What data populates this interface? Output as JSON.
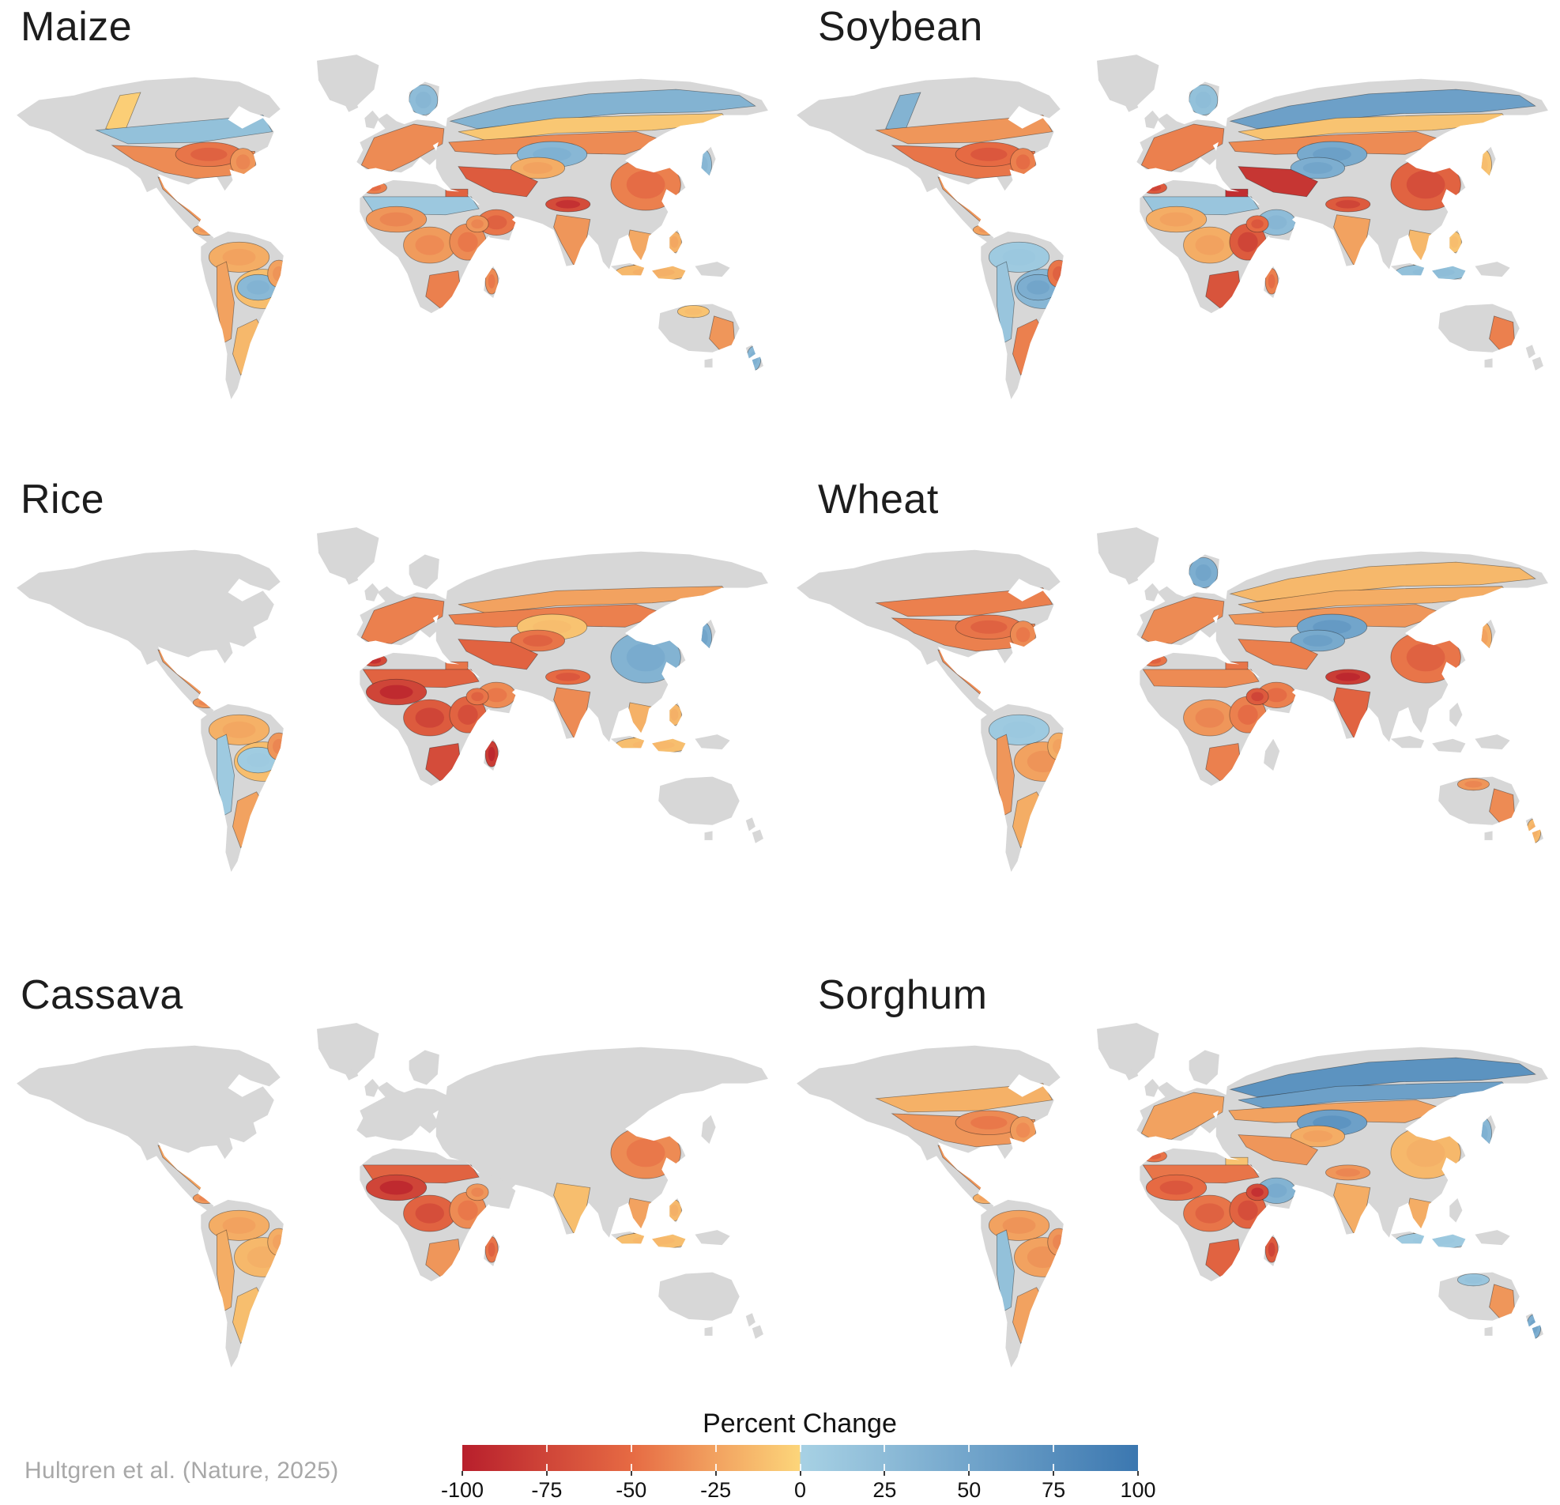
{
  "panels": [
    {
      "id": "maize",
      "title": "Maize",
      "region_values": {
        "canada_quad": -5,
        "canada_belt": 20,
        "us_main": -35,
        "us_cornbelt": -45,
        "us_east": -30,
        "mexico": -30,
        "centam": -25,
        "caribbean": -20,
        "sa_north": -20,
        "brazil_center": -12,
        "brazil_blue": 28,
        "brazil_east": -25,
        "argentina": -15,
        "andes": -25,
        "europe_main": -35,
        "scandinavia_r": 25,
        "russia_north": 35,
        "russia_band2": -8,
        "russia_mid": -35,
        "kazakh_blue": 30,
        "centasia": -20,
        "turkey_iran": -60,
        "arabia_r": -45,
        "egypt": -55,
        "morocco": -40,
        "sahel_band": 12,
        "wafrica": -30,
        "cafrica": -28,
        "eafrica": -35,
        "ethiopia": -30,
        "safrica": -40,
        "madagascar_r": -35,
        "india": -30,
        "pak_him": -70,
        "china_east": -40,
        "china_ne": 30,
        "japankorea": 25,
        "seasia": -22,
        "indonesia_r": -15,
        "philippines_r": -18,
        "australia_n": -10,
        "australia_e": -30,
        "nz_r": 30
      }
    },
    {
      "id": "soybean",
      "title": "Soybean",
      "region_values": {
        "canada_quad": 35,
        "canada_belt": -30,
        "us_main": -45,
        "us_cornbelt": -50,
        "us_east": -40,
        "mexico": -30,
        "centam": -25,
        "caribbean": -20,
        "sa_north": 10,
        "brazil_center": 30,
        "brazil_blue": 40,
        "brazil_east": -45,
        "argentina": -40,
        "andes": 15,
        "europe_main": -40,
        "scandinavia_r": 20,
        "russia_north": 55,
        "russia_band2": -10,
        "russia_mid": -35,
        "kazakh_blue": 45,
        "centasia": 40,
        "turkey_iran": -85,
        "arabia_r": 25,
        "egypt": -90,
        "morocco": -60,
        "sahel_band": 15,
        "wafrica": -20,
        "cafrica": -20,
        "eafrica": -60,
        "ethiopia": -50,
        "safrica": -65,
        "madagascar_r": -40,
        "india": -25,
        "pak_him": -60,
        "china_east": -55,
        "china_ne": 45,
        "japankorea": -10,
        "seasia": -15,
        "indonesia_r": 20,
        "philippines_r": -10,
        "australia_n": null,
        "australia_e": -40,
        "nz_r": null
      }
    },
    {
      "id": "rice",
      "title": "Rice",
      "region_values": {
        "canada_quad": null,
        "canada_belt": null,
        "us_main": null,
        "us_cornbelt": null,
        "us_east": null,
        "mexico": -30,
        "centam": -30,
        "caribbean": -25,
        "sa_north": -18,
        "brazil_center": -12,
        "brazil_blue": 8,
        "brazil_east": -30,
        "argentina": -25,
        "andes": 10,
        "europe_main": -40,
        "scandinavia_r": null,
        "russia_north": null,
        "russia_band2": -25,
        "russia_mid": -40,
        "kazakh_blue": -10,
        "centasia": -45,
        "turkey_iran": -55,
        "arabia_r": -35,
        "egypt": -45,
        "morocco": -70,
        "sahel_band": -55,
        "wafrica": -75,
        "cafrica": -60,
        "eafrica": -55,
        "ethiopia": -45,
        "safrica": -70,
        "madagascar_r": -80,
        "india": -35,
        "pak_him": -50,
        "china_east": 35,
        "china_ne": 40,
        "japankorea": 40,
        "seasia": -18,
        "indonesia_r": -12,
        "philippines_r": -15,
        "australia_n": null,
        "australia_e": null,
        "nz_r": null
      }
    },
    {
      "id": "wheat",
      "title": "Wheat",
      "region_values": {
        "canada_quad": null,
        "canada_belt": -40,
        "us_main": -40,
        "us_cornbelt": -45,
        "us_east": -35,
        "mexico": -35,
        "centam": null,
        "caribbean": null,
        "sa_north": 10,
        "brazil_center": -25,
        "brazil_blue": null,
        "brazil_east": -20,
        "argentina": -20,
        "andes": -30,
        "europe_main": -35,
        "scandinavia_r": 40,
        "russia_north": -15,
        "russia_band2": -20,
        "russia_mid": -30,
        "kazakh_blue": 50,
        "centasia": 45,
        "turkey_iran": -40,
        "arabia_r": -40,
        "egypt": -45,
        "morocco": -45,
        "sahel_band": -35,
        "wafrica": null,
        "cafrica": -30,
        "eafrica": -40,
        "ethiopia": -60,
        "safrica": -40,
        "madagascar_r": null,
        "india": -55,
        "pak_him": -80,
        "china_east": -45,
        "china_ne": 40,
        "japankorea": -20,
        "seasia": null,
        "indonesia_r": null,
        "philippines_r": null,
        "australia_n": -30,
        "australia_e": -35,
        "nz_r": -15
      }
    },
    {
      "id": "cassava",
      "title": "Cassava",
      "region_values": {
        "canada_quad": null,
        "canada_belt": null,
        "us_main": null,
        "us_cornbelt": null,
        "us_east": null,
        "mexico": -25,
        "centam": -30,
        "caribbean": -25,
        "sa_north": -20,
        "brazil_center": -15,
        "brazil_blue": null,
        "brazil_east": -20,
        "argentina": -12,
        "andes": -20,
        "europe_main": null,
        "scandinavia_r": null,
        "russia_north": null,
        "russia_band2": null,
        "russia_mid": null,
        "kazakh_blue": null,
        "centasia": null,
        "turkey_iran": null,
        "arabia_r": null,
        "egypt": null,
        "morocco": null,
        "sahel_band": -55,
        "wafrica": -75,
        "cafrica": -55,
        "eafrica": -35,
        "ethiopia": -30,
        "safrica": -30,
        "madagascar_r": -45,
        "india": -12,
        "pak_him": null,
        "china_east": -35,
        "china_ne": null,
        "japankorea": null,
        "seasia": -25,
        "indonesia_r": -12,
        "philippines_r": -15,
        "australia_n": null,
        "australia_e": null,
        "nz_r": null
      }
    },
    {
      "id": "sorghum",
      "title": "Sorghum",
      "region_values": {
        "canada_quad": null,
        "canada_belt": -18,
        "us_main": -30,
        "us_cornbelt": -35,
        "us_east": -28,
        "mexico": -30,
        "centam": -20,
        "caribbean": -20,
        "sa_north": -25,
        "brazil_center": -25,
        "brazil_blue": null,
        "brazil_east": -30,
        "argentina": -25,
        "andes": 20,
        "europe_main": -25,
        "scandinavia_r": null,
        "russia_north": 70,
        "russia_band2": 55,
        "russia_mid": -25,
        "kazakh_blue": 55,
        "centasia": -20,
        "turkey_iran": -30,
        "arabia_r": 35,
        "egypt": -10,
        "morocco": -45,
        "sahel_band": -45,
        "wafrica": -50,
        "cafrica": -45,
        "eafrica": -55,
        "ethiopia": -70,
        "safrica": -55,
        "madagascar_r": -60,
        "india": -20,
        "pak_him": -30,
        "china_east": -15,
        "china_ne": 50,
        "japankorea": 30,
        "seasia": -20,
        "indonesia_r": 10,
        "philippines_r": null,
        "australia_n": 15,
        "australia_e": -30,
        "nz_r": 40
      }
    }
  ],
  "legend": {
    "title": "Percent Change",
    "min": -100,
    "max": 100,
    "tick_labels": [
      "-100",
      "-75",
      "-50",
      "-25",
      "0",
      "25",
      "50",
      "75",
      "100"
    ]
  },
  "citation": "Hultgren et al. (Nature, 2025)",
  "colors": {
    "background": "#ffffff",
    "land_nodata": "#d7d7d7",
    "region_outline": "#1a1a1a",
    "title_text": "#1d1d1d",
    "citation_text": "#a8a8a8",
    "negative_ramp": [
      "#b81f2c",
      "#e66a43",
      "#fdd97c"
    ],
    "positive_ramp": [
      "#a9d3e5",
      "#3b77b0"
    ]
  }
}
